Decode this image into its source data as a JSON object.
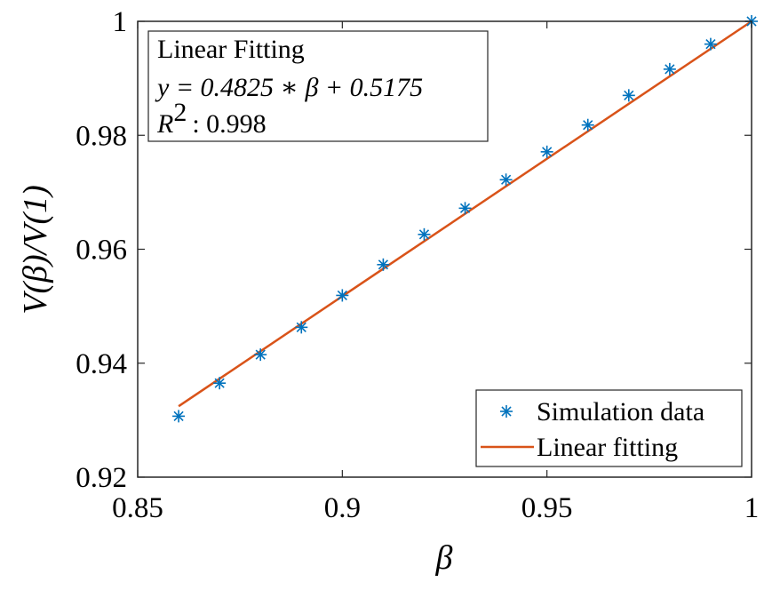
{
  "chart_data": {
    "type": "scatter",
    "xlabel": "β",
    "ylabel": "V(β)/V(1)",
    "xlim": [
      0.85,
      1.0
    ],
    "ylim": [
      0.92,
      1.0
    ],
    "x_ticks": [
      0.85,
      0.9,
      0.95,
      1.0
    ],
    "x_tick_labels": [
      "0.85",
      "0.9",
      "0.95",
      "1"
    ],
    "y_ticks": [
      0.92,
      0.94,
      0.96,
      0.98,
      1.0
    ],
    "y_tick_labels": [
      "0.92",
      "0.94",
      "0.96",
      "0.98",
      "1"
    ],
    "series": [
      {
        "name": "Simulation data",
        "kind": "marker-star",
        "color": "#0072bd",
        "x": [
          0.86,
          0.87,
          0.88,
          0.89,
          0.9,
          0.91,
          0.92,
          0.93,
          0.94,
          0.95,
          0.96,
          0.97,
          0.98,
          0.99,
          1.0
        ],
        "y": [
          0.9307,
          0.9365,
          0.9415,
          0.9463,
          0.9519,
          0.9573,
          0.9626,
          0.9672,
          0.9722,
          0.9771,
          0.9818,
          0.987,
          0.9916,
          0.996,
          1.0
        ]
      },
      {
        "name": "Linear fitting",
        "kind": "line",
        "color": "#d95319",
        "x": [
          0.86,
          1.0
        ],
        "y": [
          0.93245,
          1.0
        ]
      }
    ],
    "annotation": {
      "title": "Linear Fitting",
      "equation": "y = 0.4825 ∗ β + 0.5175",
      "r2_label": "R",
      "r2_sup": "2",
      "r2_value": ": 0.998"
    },
    "legend_position": "bottom-right"
  }
}
